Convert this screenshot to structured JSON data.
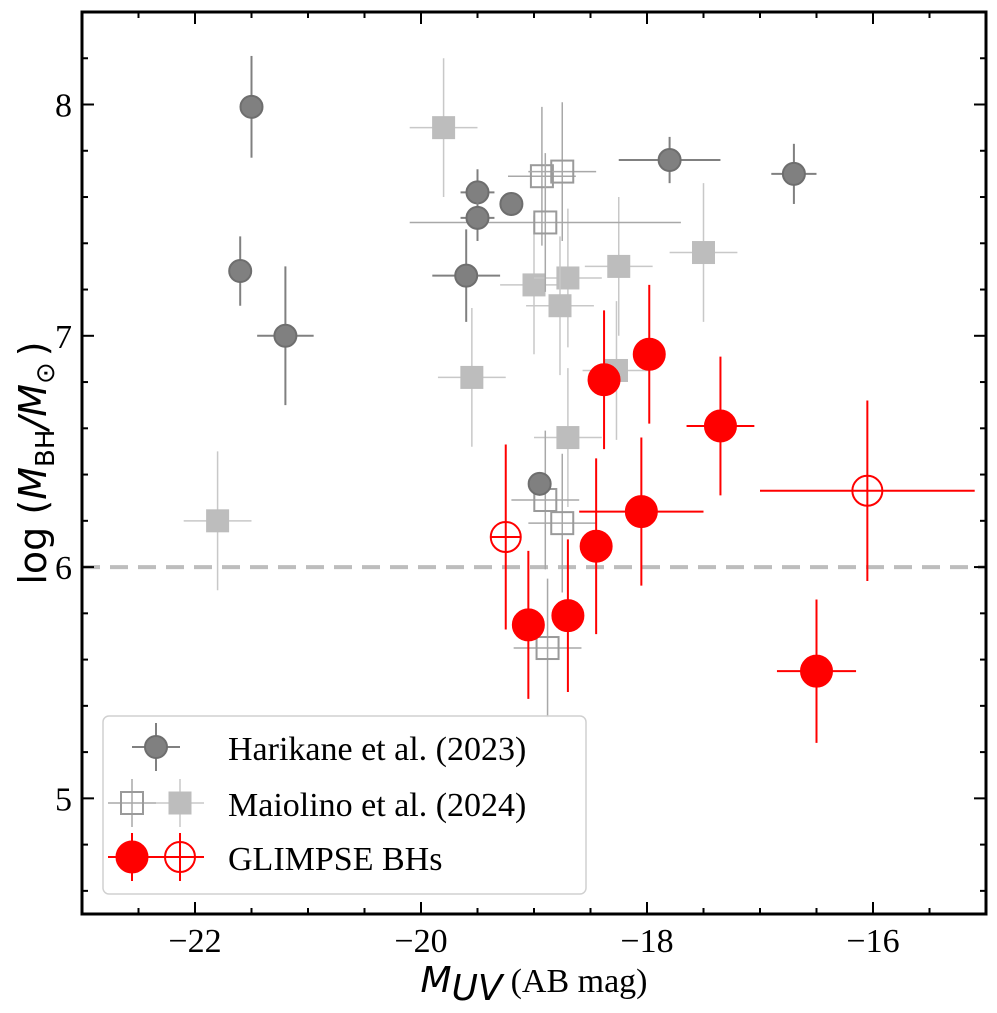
{
  "chart_data": {
    "type": "scatter",
    "xlabel_main": "M",
    "xlabel_sub": "UV",
    "xlabel_unit": "(AB mag)",
    "ylabel_prefix": "log (",
    "ylabel_m1": "M",
    "ylabel_sub1": "BH",
    "ylabel_slash": "/",
    "ylabel_m2": "M",
    "ylabel_sub2": "⊙",
    "ylabel_suffix": ")",
    "xlim": [
      -23.0,
      -15.0
    ],
    "ylim": [
      4.5,
      8.4
    ],
    "xticks": [
      -22,
      -20,
      -18,
      -16
    ],
    "xtick_labels": [
      "−22",
      "−20",
      "−18",
      "−16"
    ],
    "yticks": [
      5,
      6,
      7,
      8
    ],
    "ytick_labels": [
      "5",
      "6",
      "7",
      "8"
    ],
    "hline_y": 6.0,
    "legend": {
      "placement": "lower-left",
      "entries": [
        "Harikane et al. (2023)",
        "Maiolino et al. (2024)",
        "GLIMPSE BHs"
      ]
    },
    "colors": {
      "harikane": "#808080",
      "maiolino_open": "#9a9a9a",
      "maiolino_filled": "#bdbdbd",
      "glimpse": "#ff0000",
      "hline": "#bdbdbd"
    },
    "series": [
      {
        "name": "Harikane et al. (2023)",
        "marker": "circle",
        "filled": true,
        "points": [
          {
            "x": -21.5,
            "y": 7.99,
            "xerr": 0.0,
            "yerr": 0.22
          },
          {
            "x": -21.6,
            "y": 7.28,
            "xerr": 0.0,
            "yerr": 0.15
          },
          {
            "x": -21.2,
            "y": 7.0,
            "xerr": 0.25,
            "yerr": 0.3
          },
          {
            "x": -19.5,
            "y": 7.62,
            "xerr": 0.15,
            "yerr": 0.1
          },
          {
            "x": -19.5,
            "y": 7.51,
            "xerr": 0.15,
            "yerr": 0.1
          },
          {
            "x": -19.2,
            "y": 7.57,
            "xerr": 0.0,
            "yerr": 0.05
          },
          {
            "x": -19.6,
            "y": 7.26,
            "xerr": 0.3,
            "yerr": 0.2
          },
          {
            "x": -17.8,
            "y": 7.76,
            "xerr": 0.45,
            "yerr": 0.1
          },
          {
            "x": -16.7,
            "y": 7.7,
            "xerr": 0.2,
            "yerr": 0.13
          },
          {
            "x": -18.95,
            "y": 6.36,
            "xerr": 0.0,
            "yerr": 0.05
          }
        ]
      },
      {
        "name": "Maiolino et al. (2024) open",
        "marker": "square",
        "filled": false,
        "points": [
          {
            "x": -18.93,
            "y": 7.69,
            "xerr": 0.3,
            "yerr": 0.3
          },
          {
            "x": -18.75,
            "y": 7.71,
            "xerr": 0.3,
            "yerr": 0.3
          },
          {
            "x": -18.9,
            "y": 7.49,
            "xerr": 1.2,
            "yerr": 0.3
          },
          {
            "x": -18.9,
            "y": 6.29,
            "xerr": 0.3,
            "yerr": 0.3
          },
          {
            "x": -18.75,
            "y": 6.19,
            "xerr": 0.3,
            "yerr": 0.3
          },
          {
            "x": -18.88,
            "y": 5.65,
            "xerr": 0.3,
            "yerr": 0.3
          }
        ]
      },
      {
        "name": "Maiolino et al. (2024) filled",
        "marker": "square",
        "filled": true,
        "points": [
          {
            "x": -19.8,
            "y": 7.9,
            "xerr": 0.3,
            "yerr": 0.3
          },
          {
            "x": -19.0,
            "y": 7.22,
            "xerr": 0.3,
            "yerr": 0.3
          },
          {
            "x": -18.7,
            "y": 7.25,
            "xerr": 0.3,
            "yerr": 0.3
          },
          {
            "x": -18.77,
            "y": 7.13,
            "xerr": 0.3,
            "yerr": 0.3
          },
          {
            "x": -18.25,
            "y": 7.3,
            "xerr": 0.3,
            "yerr": 0.3
          },
          {
            "x": -17.5,
            "y": 7.36,
            "xerr": 0.3,
            "yerr": 0.3
          },
          {
            "x": -19.55,
            "y": 6.82,
            "xerr": 0.3,
            "yerr": 0.3
          },
          {
            "x": -18.27,
            "y": 6.85,
            "xerr": 0.3,
            "yerr": 0.3
          },
          {
            "x": -18.7,
            "y": 6.56,
            "xerr": 0.3,
            "yerr": 0.3
          },
          {
            "x": -21.8,
            "y": 6.2,
            "xerr": 0.3,
            "yerr": 0.3
          }
        ]
      },
      {
        "name": "GLIMPSE BHs",
        "marker": "circle",
        "filled": true,
        "points": [
          {
            "x": -19.05,
            "y": 5.75,
            "xerr": 0.0,
            "yerr": 0.32
          },
          {
            "x": -18.7,
            "y": 5.79,
            "xerr": 0.0,
            "yerr": 0.33
          },
          {
            "x": -18.45,
            "y": 6.09,
            "xerr": 0.0,
            "yerr": 0.38
          },
          {
            "x": -18.38,
            "y": 6.81,
            "xerr": 0.0,
            "yerr": 0.3
          },
          {
            "x": -17.98,
            "y": 6.92,
            "xerr": 0.0,
            "yerr": 0.3
          },
          {
            "x": -18.05,
            "y": 6.24,
            "xerr": 0.55,
            "yerr": 0.32
          },
          {
            "x": -17.35,
            "y": 6.61,
            "xerr": 0.3,
            "yerr": 0.3
          },
          {
            "x": -16.5,
            "y": 5.55,
            "xerr": 0.35,
            "yerr": 0.31
          }
        ]
      },
      {
        "name": "GLIMPSE BHs open",
        "marker": "circle",
        "filled": false,
        "points": [
          {
            "x": -19.25,
            "y": 6.13,
            "xerr": 0.0,
            "yerr": 0.4
          },
          {
            "x": -16.05,
            "y": 6.33,
            "xerr": 0.95,
            "yerr": 0.39
          }
        ]
      }
    ]
  }
}
